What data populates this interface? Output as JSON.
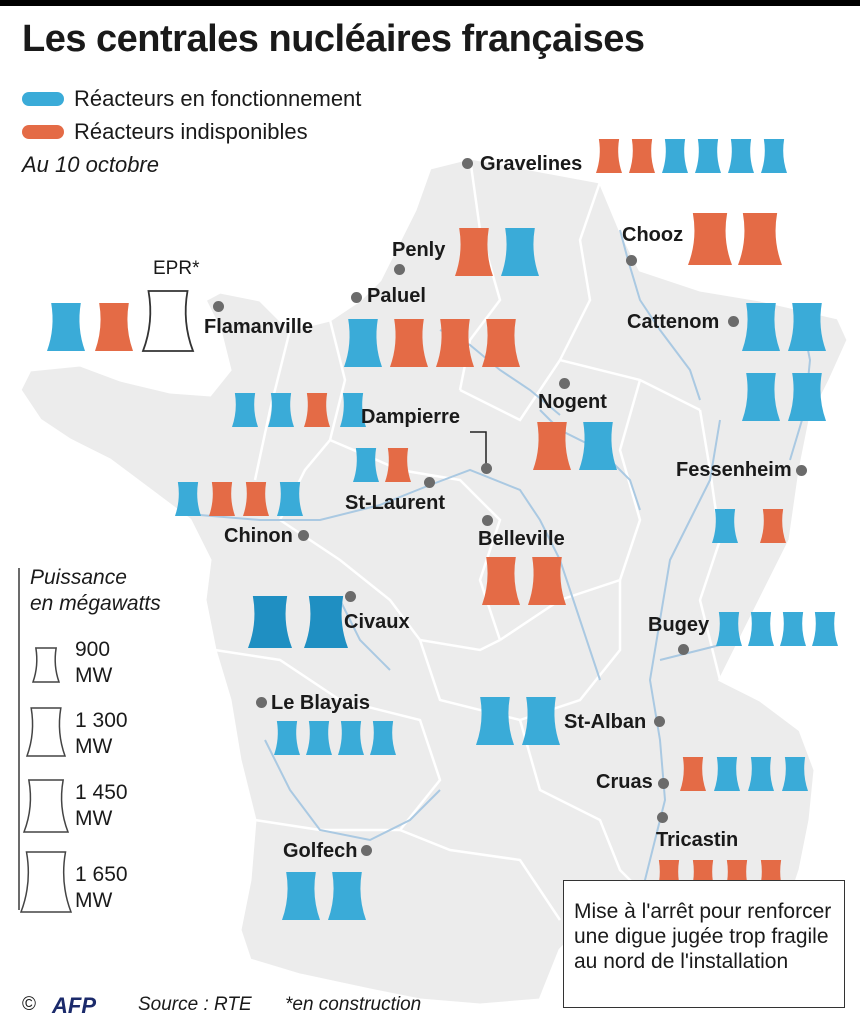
{
  "title": "Les centrales nucléaires françaises",
  "legend": {
    "operating": "Réacteurs en fonctionnement",
    "unavailable": "Réacteurs indisponibles"
  },
  "subtitle": "Au 10 octobre",
  "colors": {
    "operating": "#3aabd8",
    "unavailable": "#e46b46",
    "civaux_operating": "#1f8fc2",
    "land": "#ececec",
    "river": "#aac9e2",
    "border": "#ffffff"
  },
  "epr_label": "EPR*",
  "plants": [
    {
      "name": "Gravelines",
      "reactors": [
        {
          "s": "u",
          "mw": 900
        },
        {
          "s": "u",
          "mw": 900
        },
        {
          "s": "o",
          "mw": 900
        },
        {
          "s": "o",
          "mw": 900
        },
        {
          "s": "o",
          "mw": 900
        },
        {
          "s": "o",
          "mw": 900
        }
      ]
    },
    {
      "name": "Penly",
      "reactors": [
        {
          "s": "u",
          "mw": 1300
        },
        {
          "s": "o",
          "mw": 1300
        }
      ]
    },
    {
      "name": "Chooz",
      "reactors": [
        {
          "s": "u",
          "mw": 1450
        },
        {
          "s": "u",
          "mw": 1450
        }
      ]
    },
    {
      "name": "Paluel",
      "reactors": [
        {
          "s": "o",
          "mw": 1300
        },
        {
          "s": "u",
          "mw": 1300
        },
        {
          "s": "u",
          "mw": 1300
        },
        {
          "s": "u",
          "mw": 1300
        }
      ]
    },
    {
      "name": "Flamanville",
      "reactors": [
        {
          "s": "o",
          "mw": 1300
        },
        {
          "s": "u",
          "mw": 1300
        },
        {
          "s": "c",
          "mw": 1650
        }
      ]
    },
    {
      "name": "Cattenom",
      "reactors": [
        {
          "s": "o",
          "mw": 1300
        },
        {
          "s": "o",
          "mw": 1300
        },
        {
          "s": "o",
          "mw": 1300
        },
        {
          "s": "o",
          "mw": 1300
        }
      ]
    },
    {
      "name": "Dampierre",
      "reactors": [
        {
          "s": "o",
          "mw": 900
        },
        {
          "s": "o",
          "mw": 900
        },
        {
          "s": "u",
          "mw": 900
        },
        {
          "s": "o",
          "mw": 900
        }
      ]
    },
    {
      "name": "Nogent",
      "reactors": [
        {
          "s": "u",
          "mw": 1300
        },
        {
          "s": "o",
          "mw": 1300
        }
      ]
    },
    {
      "name": "St-Laurent",
      "reactors": [
        {
          "s": "o",
          "mw": 900
        },
        {
          "s": "u",
          "mw": 900
        }
      ]
    },
    {
      "name": "Fessenheim",
      "reactors": [
        {
          "s": "o",
          "mw": 900
        },
        {
          "s": "u",
          "mw": 900
        }
      ]
    },
    {
      "name": "Chinon",
      "reactors": [
        {
          "s": "o",
          "mw": 900
        },
        {
          "s": "u",
          "mw": 900
        },
        {
          "s": "u",
          "mw": 900
        },
        {
          "s": "o",
          "mw": 900
        }
      ]
    },
    {
      "name": "Belleville",
      "reactors": [
        {
          "s": "u",
          "mw": 1300
        },
        {
          "s": "u",
          "mw": 1300
        }
      ]
    },
    {
      "name": "Civaux",
      "reactors": [
        {
          "s": "o",
          "mw": 1450
        },
        {
          "s": "o",
          "mw": 1450
        }
      ]
    },
    {
      "name": "Bugey",
      "reactors": [
        {
          "s": "o",
          "mw": 900
        },
        {
          "s": "o",
          "mw": 900
        },
        {
          "s": "o",
          "mw": 900
        },
        {
          "s": "o",
          "mw": 900
        }
      ]
    },
    {
      "name": "Le Blayais",
      "reactors": [
        {
          "s": "o",
          "mw": 900
        },
        {
          "s": "o",
          "mw": 900
        },
        {
          "s": "o",
          "mw": 900
        },
        {
          "s": "o",
          "mw": 900
        }
      ]
    },
    {
      "name": "St-Alban",
      "reactors": [
        {
          "s": "o",
          "mw": 1300
        },
        {
          "s": "o",
          "mw": 1300
        }
      ]
    },
    {
      "name": "Cruas",
      "reactors": [
        {
          "s": "u",
          "mw": 900
        },
        {
          "s": "o",
          "mw": 900
        },
        {
          "s": "o",
          "mw": 900
        },
        {
          "s": "o",
          "mw": 900
        }
      ]
    },
    {
      "name": "Tricastin",
      "reactors": [
        {
          "s": "u",
          "mw": 900
        },
        {
          "s": "u",
          "mw": 900
        },
        {
          "s": "u",
          "mw": 900
        },
        {
          "s": "u",
          "mw": 900
        }
      ]
    },
    {
      "name": "Golfech",
      "reactors": [
        {
          "s": "o",
          "mw": 1300
        },
        {
          "s": "o",
          "mw": 1300
        }
      ]
    }
  ],
  "scale": {
    "title_line1": "Puissance",
    "title_line2": "en mégawatts",
    "items": [
      {
        "value": "900",
        "unit": "MW"
      },
      {
        "value": "1 300",
        "unit": "MW"
      },
      {
        "value": "1 450",
        "unit": "MW"
      },
      {
        "value": "1 650",
        "unit": "MW"
      }
    ]
  },
  "note": "Mise à l'arrêt pour renforcer une digue jugée trop fragile au nord de l'installation",
  "footer": {
    "copyright": "©",
    "agency": "AFP",
    "source": "Source : RTE",
    "footnote": "*en construction"
  }
}
